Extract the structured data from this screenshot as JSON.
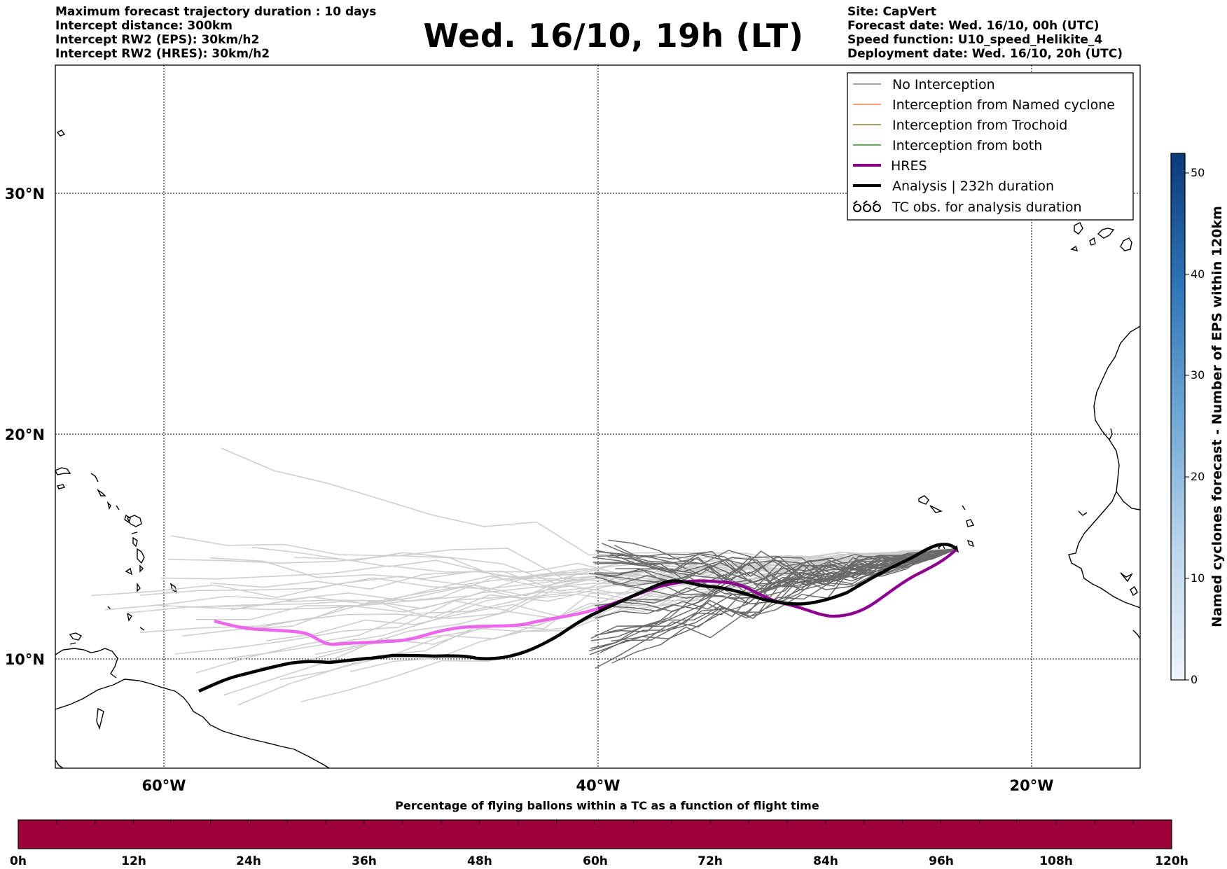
{
  "header_left": [
    "Maximum forecast trajectory duration : 10 days",
    "Intercept distance: 300km",
    "Intercept RW2 (EPS):  30km/h2",
    "Intercept RW2 (HRES): 30km/h2"
  ],
  "title": "Wed. 16/10, 19h (LT)",
  "header_right": [
    "Site: CapVert",
    "Forecast date: Wed. 16/10, 00h (UTC)",
    "Speed function: U10_speed_Helikite_4",
    "Deployment date: Wed. 16/10, 20h (UTC)"
  ],
  "map": {
    "lat_labels": [
      "30°N",
      "20°N",
      "10°N"
    ],
    "lon_labels": [
      "60°W",
      "40°W",
      "20°W"
    ]
  },
  "legend": [
    {
      "label": "No Interception",
      "color": "#808080",
      "style": "thin"
    },
    {
      "label": "Interception from Named cyclone",
      "color": "#ff7f50",
      "style": "thin"
    },
    {
      "label": "Interception from Trochoid",
      "color": "#8b8b2e",
      "style": "thin"
    },
    {
      "label": "Interception from both",
      "color": "#2e8b2e",
      "style": "thin"
    },
    {
      "label": "HRES",
      "color": "#8b008b",
      "style": "thick"
    },
    {
      "label": "Analysis | 232h duration",
      "color": "#000000",
      "style": "thick"
    },
    {
      "label": "TC obs. for analysis duration",
      "color": "#000000",
      "style": "symbol"
    }
  ],
  "colorbar_right": {
    "label": "Named cyclones forecast - Number of EPS within 120km",
    "ticks": [
      "0",
      "10",
      "20",
      "30",
      "40",
      "50"
    ],
    "color_low": "#e8f1fa",
    "color_high": "#0b3a78"
  },
  "colorbar_bottom": {
    "title": "Percentage of flying ballons within a TC as a function of flight time",
    "ticks": [
      "0h",
      "12h",
      "24h",
      "36h",
      "48h",
      "60h",
      "72h",
      "84h",
      "96h",
      "108h",
      "120h"
    ],
    "fill_color": "#9e003a"
  }
}
